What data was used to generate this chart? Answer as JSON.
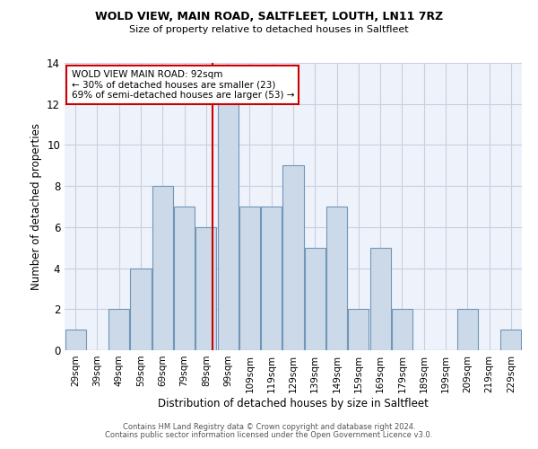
{
  "title1": "WOLD VIEW, MAIN ROAD, SALTFLEET, LOUTH, LN11 7RZ",
  "title2": "Size of property relative to detached houses in Saltfleet",
  "xlabel": "Distribution of detached houses by size in Saltfleet",
  "ylabel": "Number of detached properties",
  "footnote1": "Contains HM Land Registry data © Crown copyright and database right 2024.",
  "footnote2": "Contains public sector information licensed under the Open Government Licence v3.0.",
  "annotation_title": "WOLD VIEW MAIN ROAD: 92sqm",
  "annotation_line1": "← 30% of detached houses are smaller (23)",
  "annotation_line2": "69% of semi-detached houses are larger (53) →",
  "property_size": 92,
  "bar_color": "#ccd9e8",
  "bar_edge_color": "#7096b8",
  "marker_color": "#cc0000",
  "annotation_box_color": "#cc0000",
  "background_color": "#eef2fa",
  "grid_color": "#c8cfe0",
  "categories": [
    "29sqm",
    "39sqm",
    "49sqm",
    "59sqm",
    "69sqm",
    "79sqm",
    "89sqm",
    "99sqm",
    "109sqm",
    "119sqm",
    "129sqm",
    "139sqm",
    "149sqm",
    "159sqm",
    "169sqm",
    "179sqm",
    "189sqm",
    "199sqm",
    "209sqm",
    "219sqm",
    "229sqm"
  ],
  "bin_edges": [
    24,
    34,
    44,
    54,
    64,
    74,
    84,
    94,
    104,
    114,
    124,
    134,
    144,
    154,
    164,
    174,
    184,
    194,
    204,
    214,
    224,
    234
  ],
  "values": [
    1,
    0,
    2,
    4,
    8,
    7,
    6,
    12,
    7,
    7,
    9,
    5,
    7,
    2,
    5,
    2,
    0,
    0,
    2,
    0,
    1
  ],
  "ylim": [
    0,
    14
  ],
  "yticks": [
    0,
    2,
    4,
    6,
    8,
    10,
    12,
    14
  ]
}
